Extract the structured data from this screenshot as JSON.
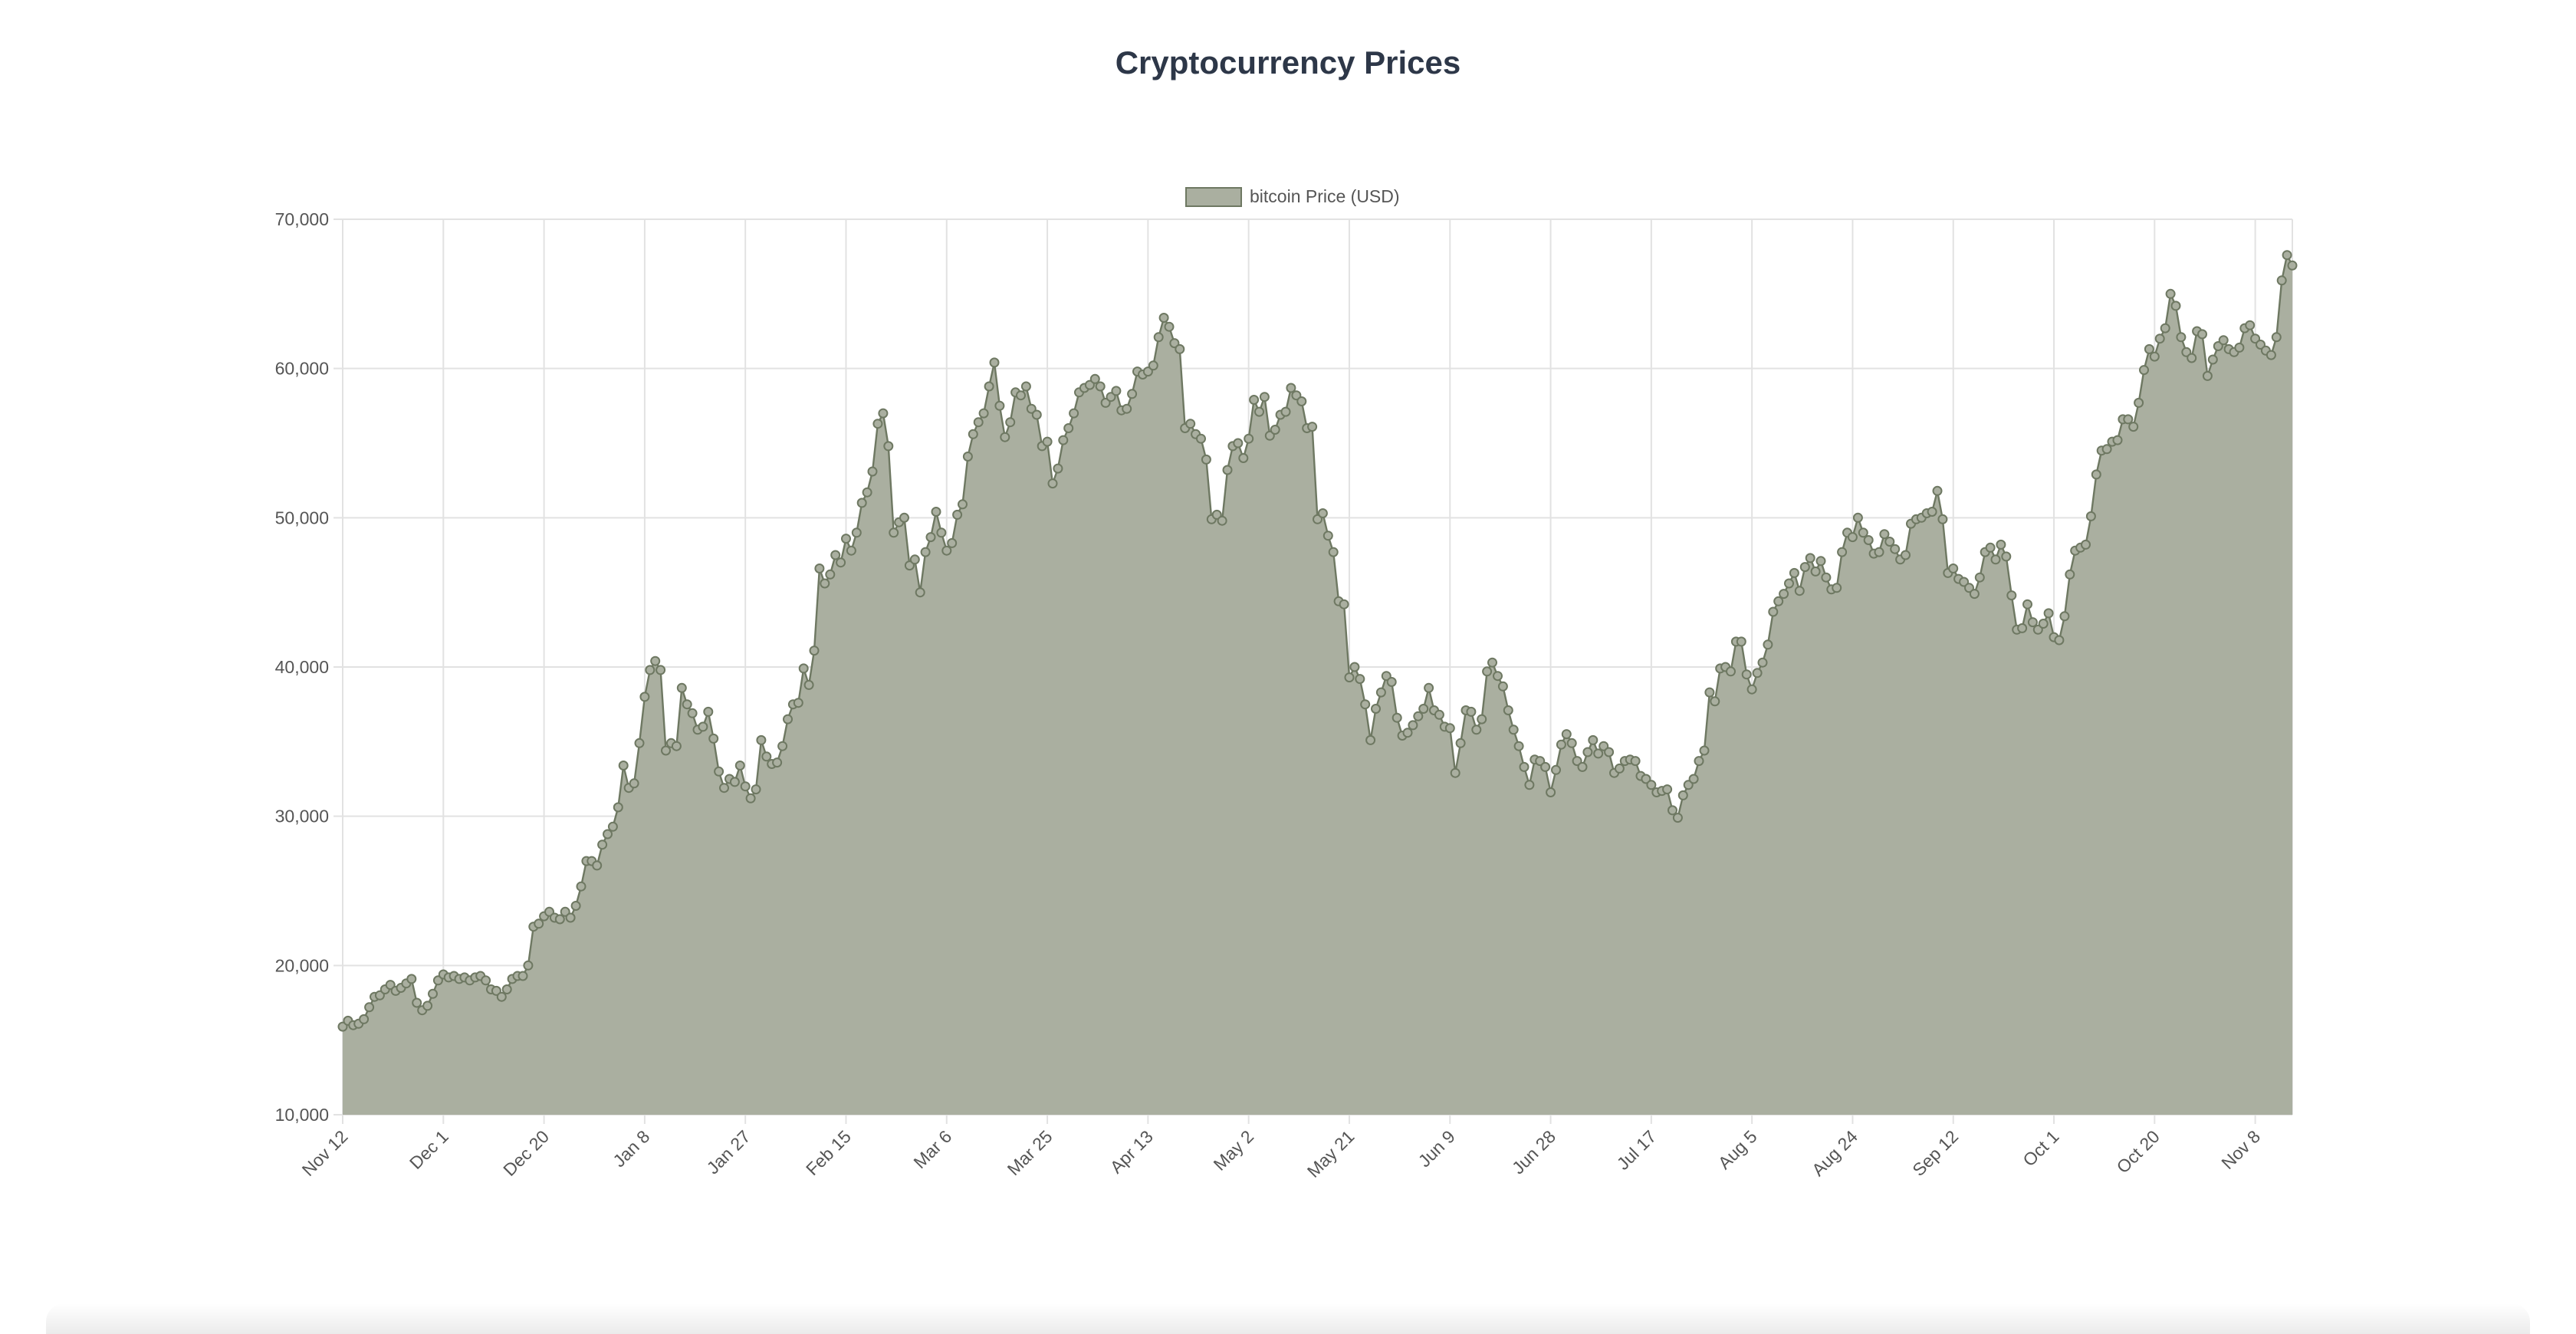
{
  "page": {
    "title": "Cryptocurrency Prices"
  },
  "colors": {
    "fill": "#aaafa0",
    "stroke": "#6e7862",
    "grid": "#e2e2e2",
    "text": "#555555"
  },
  "chart_data": {
    "type": "area",
    "title": "Cryptocurrency Prices",
    "xlabel": "",
    "ylabel": "",
    "ylim": [
      10000,
      70000
    ],
    "yticks": [
      10000,
      20000,
      30000,
      40000,
      50000,
      60000,
      70000
    ],
    "ytick_labels": [
      "10,000",
      "20,000",
      "30,000",
      "40,000",
      "50,000",
      "60,000",
      "70,000"
    ],
    "xtick_labels": [
      "Nov 12",
      "Dec 1",
      "Dec 20",
      "Jan 8",
      "Jan 27",
      "Feb 15",
      "Mar 6",
      "Mar 25",
      "Apr 13",
      "May 2",
      "May 21",
      "Jun 9",
      "Jun 28",
      "Jul 17",
      "Aug 5",
      "Aug 24",
      "Sep 12",
      "Oct 1",
      "Oct 20",
      "Nov 8"
    ],
    "xtick_every_days": 19,
    "grid": true,
    "legend": "top",
    "series": [
      {
        "name": "bitcoin Price (USD)",
        "values": [
          15900,
          16300,
          16000,
          16100,
          16400,
          17200,
          17900,
          18000,
          18400,
          18700,
          18300,
          18500,
          18800,
          19100,
          17500,
          17000,
          17300,
          18100,
          19000,
          19400,
          19200,
          19300,
          19100,
          19200,
          19000,
          19200,
          19300,
          19000,
          18400,
          18300,
          17900,
          18400,
          19100,
          19300,
          19300,
          20000,
          22600,
          22800,
          23300,
          23600,
          23200,
          23100,
          23600,
          23200,
          24000,
          25300,
          27000,
          27000,
          26700,
          28100,
          28800,
          29300,
          30600,
          33400,
          31900,
          32200,
          34900,
          38000,
          39800,
          40400,
          39800,
          34400,
          34900,
          34700,
          38600,
          37500,
          36900,
          35800,
          36000,
          37000,
          35200,
          33000,
          31900,
          32500,
          32300,
          33400,
          32000,
          31200,
          31800,
          35100,
          34000,
          33500,
          33600,
          34700,
          36500,
          37500,
          37600,
          39900,
          38800,
          41100,
          46600,
          45600,
          46200,
          47500,
          47000,
          48600,
          47800,
          49000,
          51000,
          51700,
          53100,
          56300,
          57000,
          54800,
          49000,
          49700,
          50000,
          46800,
          47200,
          45000,
          47700,
          48700,
          50400,
          49000,
          47800,
          48300,
          50200,
          50900,
          54100,
          55600,
          56400,
          57000,
          58800,
          60400,
          57500,
          55400,
          56400,
          58400,
          58200,
          58800,
          57300,
          56900,
          54800,
          55100,
          52300,
          53300,
          55200,
          56000,
          57000,
          58400,
          58700,
          58900,
          59300,
          58800,
          57700,
          58100,
          58500,
          57200,
          57300,
          58300,
          59800,
          59600,
          59800,
          60200,
          62100,
          63400,
          62800,
          61700,
          61300,
          56000,
          56300,
          55600,
          55300,
          53900,
          49900,
          50200,
          49800,
          53200,
          54800,
          55000,
          54000,
          55300,
          57900,
          57100,
          58100,
          55500,
          55900,
          56900,
          57100,
          58700,
          58200,
          57800,
          56000,
          56100,
          49900,
          50300,
          48800,
          47700,
          44400,
          44200,
          39300,
          40000,
          39200,
          37500,
          35100,
          37200,
          38300,
          39400,
          39000,
          36600,
          35400,
          35600,
          36100,
          36700,
          37200,
          38600,
          37100,
          36800,
          36000,
          35900,
          32900,
          34900,
          37100,
          37000,
          35800,
          36500,
          39700,
          40300,
          39400,
          38700,
          37100,
          35800,
          34700,
          33300,
          32100,
          33800,
          33700,
          33300,
          31600,
          33100,
          34800,
          35500,
          34900,
          33700,
          33300,
          34300,
          35100,
          34200,
          34700,
          34300,
          32900,
          33200,
          33700,
          33800,
          33700,
          32700,
          32500,
          32100,
          31600,
          31700,
          31800,
          30400,
          29900,
          31400,
          32100,
          32500,
          33700,
          34400,
          38300,
          37700,
          39900,
          40000,
          39700,
          41700,
          41700,
          39500,
          38500,
          39600,
          40300,
          41500,
          43700,
          44400,
          44900,
          45600,
          46300,
          45100,
          46700,
          47300,
          46400,
          47100,
          46000,
          45200,
          45300,
          47700,
          49000,
          48700,
          50000,
          49000,
          48500,
          47600,
          47700,
          48900,
          48400,
          47900,
          47200,
          47500,
          49600,
          49900,
          50000,
          50300,
          50400,
          51800,
          49900,
          46300,
          46600,
          45900,
          45700,
          45300,
          44900,
          46000,
          47700,
          48000,
          47200,
          48200,
          47400,
          44800,
          42500,
          42600,
          44200,
          43000,
          42500,
          42900,
          43600,
          42000,
          41800,
          43400,
          46200,
          47800,
          48000,
          48200,
          50100,
          52900,
          54500,
          54600,
          55100,
          55200,
          56600,
          56600,
          56100,
          57700,
          59900,
          61300,
          60800,
          62000,
          62700,
          65000,
          64200,
          62100,
          61100,
          60700,
          62500,
          62300,
          59500,
          60600,
          61500,
          61900,
          61300,
          61100,
          61400,
          62700,
          62900,
          62000,
          61600,
          61200,
          60900,
          62100,
          65900,
          67600,
          66900
        ]
      }
    ]
  }
}
